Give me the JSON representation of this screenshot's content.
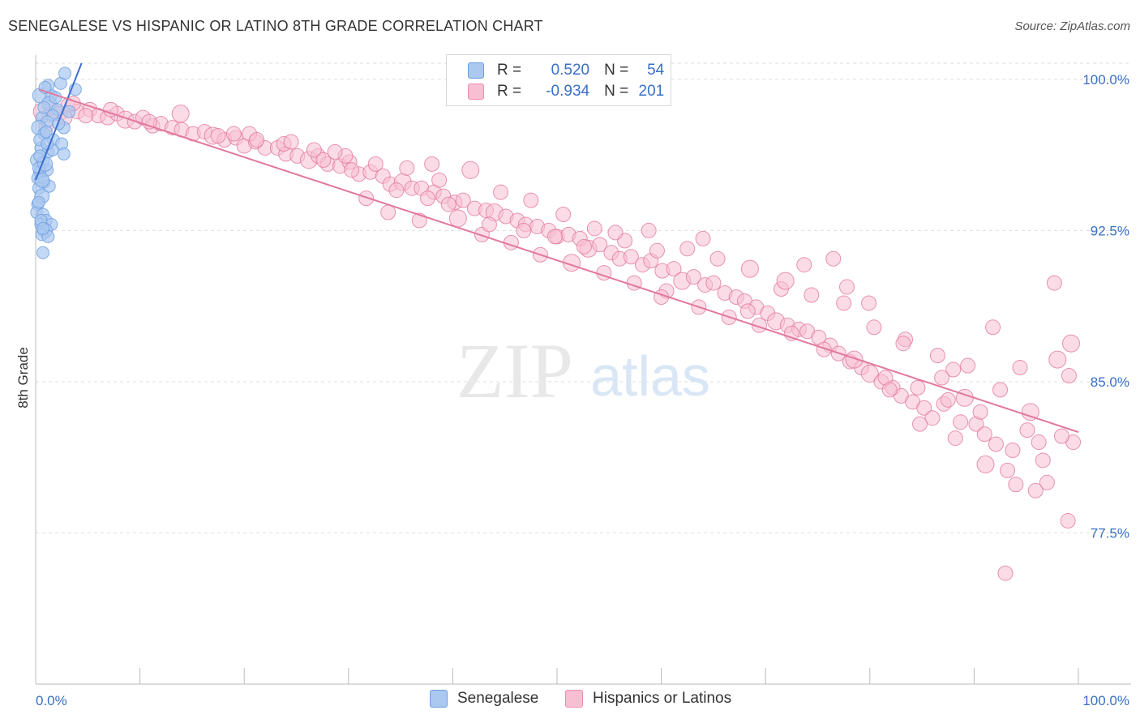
{
  "header": {
    "title": "SENEGALESE VS HISPANIC OR LATINO 8TH GRADE CORRELATION CHART",
    "source": "Source: ZipAtlas.com"
  },
  "watermark": {
    "zip": "ZIP",
    "atlas": "atlas"
  },
  "legend": {
    "rows": [
      {
        "r_label": "R =",
        "r_value": "0.520",
        "n_label": "N =",
        "n_value": "54",
        "color": "#aac8f0",
        "border": "#6c9ee0"
      },
      {
        "r_label": "R =",
        "r_value": "-0.934",
        "n_label": "N =",
        "n_value": "201",
        "color": "#f7bfd1",
        "border": "#ec8db0"
      }
    ]
  },
  "bottom_legend": {
    "items": [
      {
        "label": "Senegalese",
        "color": "#aac8f0",
        "border": "#6c9ee0"
      },
      {
        "label": "Hispanics or Latinos",
        "color": "#f7bfd1",
        "border": "#ec8db0"
      }
    ]
  },
  "chart_data": {
    "type": "scatter",
    "title": "SENEGALESE VS HISPANIC OR LATINO 8TH GRADE CORRELATION CHART",
    "xlabel": "",
    "ylabel": "8th Grade",
    "xlim": [
      0,
      100
    ],
    "ylim": [
      70.0,
      100.8
    ],
    "x_tick_labels": [
      "0.0%",
      "100.0%"
    ],
    "y_ticks": [
      77.5,
      85.0,
      92.5,
      100.0
    ],
    "y_tick_labels": [
      "77.5%",
      "85.0%",
      "92.5%",
      "100.0%"
    ],
    "grid": true,
    "legend_position": "top-center",
    "series": [
      {
        "name": "Senegalese",
        "color": "#6c9ee0",
        "fill": "#aac8f0",
        "trend": {
          "x": [
            0,
            4.4
          ],
          "y": [
            95.0,
            100.8
          ]
        },
        "points": [
          [
            0.4,
            99.2
          ],
          [
            1.5,
            99.2
          ],
          [
            1.2,
            99.7
          ],
          [
            2.4,
            99.8
          ],
          [
            2.8,
            100.3
          ],
          [
            3.8,
            99.5
          ],
          [
            0.9,
            99.6
          ],
          [
            1.3,
            98.8
          ],
          [
            2.1,
            98.5
          ],
          [
            3.2,
            98.4
          ],
          [
            1.6,
            98.2
          ],
          [
            0.6,
            98.1
          ],
          [
            1.1,
            97.9
          ],
          [
            2.7,
            97.6
          ],
          [
            0.3,
            97.6
          ],
          [
            0.8,
            97.3
          ],
          [
            1.7,
            97.0
          ],
          [
            2.5,
            96.8
          ],
          [
            0.5,
            96.6
          ],
          [
            1.2,
            96.4
          ],
          [
            2.7,
            96.3
          ],
          [
            0.2,
            96.0
          ],
          [
            0.7,
            95.9
          ],
          [
            1.1,
            95.5
          ],
          [
            0.4,
            95.4
          ],
          [
            0.2,
            95.1
          ],
          [
            0.8,
            94.9
          ],
          [
            0.3,
            94.6
          ],
          [
            0.6,
            94.2
          ],
          [
            0.2,
            93.8
          ],
          [
            0.1,
            93.4
          ],
          [
            0.7,
            93.3
          ],
          [
            1.0,
            93.0
          ],
          [
            1.5,
            92.8
          ],
          [
            0.5,
            92.8
          ],
          [
            0.9,
            92.5
          ],
          [
            0.6,
            92.3
          ],
          [
            1.2,
            92.2
          ],
          [
            0.7,
            91.4
          ],
          [
            0.3,
            95.6
          ],
          [
            0.4,
            97.0
          ],
          [
            1.6,
            96.5
          ],
          [
            0.9,
            95.8
          ],
          [
            1.3,
            94.7
          ],
          [
            0.5,
            93.0
          ],
          [
            0.8,
            98.6
          ],
          [
            1.9,
            99.1
          ],
          [
            2.2,
            97.8
          ],
          [
            0.4,
            96.2
          ],
          [
            0.6,
            95.0
          ],
          [
            1.0,
            97.4
          ],
          [
            0.3,
            93.9
          ],
          [
            1.1,
            96.8
          ],
          [
            0.7,
            92.6
          ]
        ]
      },
      {
        "name": "Hispanics or Latinos",
        "color": "#e2789f",
        "fill": "#f7bfd1",
        "trend": {
          "x": [
            0.3,
            100
          ],
          "y": [
            99.5,
            82.5
          ]
        },
        "points": [
          [
            0.6,
            98.4
          ],
          [
            1.5,
            98.6
          ],
          [
            2.3,
            98.3
          ],
          [
            3.1,
            98.7
          ],
          [
            4.0,
            98.4
          ],
          [
            5.2,
            98.5
          ],
          [
            6.0,
            98.2
          ],
          [
            6.9,
            98.1
          ],
          [
            7.8,
            98.3
          ],
          [
            8.6,
            98.0
          ],
          [
            9.5,
            97.9
          ],
          [
            10.3,
            98.1
          ],
          [
            11.2,
            97.7
          ],
          [
            12.0,
            97.8
          ],
          [
            13.1,
            97.6
          ],
          [
            14.0,
            97.5
          ],
          [
            15.1,
            97.3
          ],
          [
            16.2,
            97.4
          ],
          [
            17.0,
            97.2
          ],
          [
            18.1,
            97.0
          ],
          [
            19.2,
            97.1
          ],
          [
            20.0,
            96.7
          ],
          [
            21.1,
            96.9
          ],
          [
            22.0,
            96.6
          ],
          [
            23.2,
            96.6
          ],
          [
            24.0,
            96.3
          ],
          [
            25.1,
            96.2
          ],
          [
            26.2,
            96.0
          ],
          [
            27.1,
            96.2
          ],
          [
            28.0,
            95.8
          ],
          [
            29.2,
            95.7
          ],
          [
            30.1,
            95.9
          ],
          [
            31.0,
            95.3
          ],
          [
            32.1,
            95.4
          ],
          [
            33.3,
            95.2
          ],
          [
            34.0,
            94.8
          ],
          [
            35.2,
            94.9
          ],
          [
            36.1,
            94.6
          ],
          [
            37.0,
            94.6
          ],
          [
            38.2,
            94.4
          ],
          [
            39.1,
            94.2
          ],
          [
            40.2,
            93.9
          ],
          [
            41.0,
            94.0
          ],
          [
            42.1,
            93.6
          ],
          [
            43.2,
            93.5
          ],
          [
            44.0,
            93.4
          ],
          [
            45.1,
            93.2
          ],
          [
            46.2,
            93.0
          ],
          [
            47.0,
            92.8
          ],
          [
            48.1,
            92.7
          ],
          [
            49.2,
            92.5
          ],
          [
            50.0,
            92.2
          ],
          [
            51.1,
            92.3
          ],
          [
            52.2,
            92.1
          ],
          [
            53.0,
            91.6
          ],
          [
            54.1,
            91.8
          ],
          [
            55.2,
            91.4
          ],
          [
            56.0,
            91.1
          ],
          [
            57.1,
            91.2
          ],
          [
            58.2,
            90.8
          ],
          [
            59.0,
            91.0
          ],
          [
            60.1,
            90.5
          ],
          [
            61.2,
            90.6
          ],
          [
            62.0,
            90.0
          ],
          [
            63.1,
            90.2
          ],
          [
            64.2,
            89.8
          ],
          [
            65.0,
            89.9
          ],
          [
            66.1,
            89.4
          ],
          [
            67.2,
            89.2
          ],
          [
            68.0,
            89.0
          ],
          [
            69.1,
            88.7
          ],
          [
            70.2,
            88.4
          ],
          [
            71.0,
            88.0
          ],
          [
            72.1,
            87.8
          ],
          [
            73.2,
            87.6
          ],
          [
            74.0,
            87.5
          ],
          [
            75.1,
            87.2
          ],
          [
            76.2,
            86.8
          ],
          [
            77.0,
            86.4
          ],
          [
            78.1,
            86.0
          ],
          [
            79.2,
            85.7
          ],
          [
            80.0,
            85.4
          ],
          [
            81.1,
            85.0
          ],
          [
            82.2,
            84.7
          ],
          [
            83.0,
            84.3
          ],
          [
            84.1,
            84.0
          ],
          [
            85.2,
            83.7
          ],
          [
            86.0,
            83.2
          ],
          [
            87.1,
            83.9
          ],
          [
            88.0,
            85.6
          ],
          [
            89.1,
            84.2
          ],
          [
            90.2,
            82.9
          ],
          [
            91.0,
            82.4
          ],
          [
            92.1,
            81.9
          ],
          [
            93.2,
            80.6
          ],
          [
            94.0,
            79.9
          ],
          [
            95.1,
            82.6
          ],
          [
            96.2,
            82.0
          ],
          [
            97.0,
            80.0
          ],
          [
            98.0,
            86.1
          ],
          [
            99.1,
            85.3
          ],
          [
            99.5,
            82.0
          ],
          [
            1.0,
            97.7
          ],
          [
            2.8,
            98.1
          ],
          [
            3.6,
            98.8
          ],
          [
            4.8,
            98.2
          ],
          [
            7.2,
            98.5
          ],
          [
            10.9,
            97.9
          ],
          [
            13.9,
            98.3
          ],
          [
            17.5,
            97.2
          ],
          [
            20.5,
            97.3
          ],
          [
            23.8,
            96.8
          ],
          [
            26.7,
            96.5
          ],
          [
            29.7,
            96.2
          ],
          [
            32.6,
            95.8
          ],
          [
            35.6,
            95.6
          ],
          [
            38.7,
            95.0
          ],
          [
            41.7,
            95.5
          ],
          [
            44.6,
            94.4
          ],
          [
            47.5,
            94.0
          ],
          [
            50.6,
            93.3
          ],
          [
            53.6,
            92.6
          ],
          [
            56.5,
            92.0
          ],
          [
            59.6,
            91.5
          ],
          [
            62.5,
            91.6
          ],
          [
            65.4,
            91.1
          ],
          [
            68.5,
            90.6
          ],
          [
            71.5,
            89.6
          ],
          [
            74.4,
            89.3
          ],
          [
            77.5,
            88.9
          ],
          [
            80.4,
            87.7
          ],
          [
            83.4,
            87.1
          ],
          [
            86.5,
            86.3
          ],
          [
            89.4,
            85.8
          ],
          [
            92.5,
            84.6
          ],
          [
            95.4,
            83.5
          ],
          [
            98.4,
            82.3
          ],
          [
            31.7,
            94.1
          ],
          [
            33.8,
            93.4
          ],
          [
            36.8,
            93.0
          ],
          [
            39.6,
            93.8
          ],
          [
            42.8,
            92.3
          ],
          [
            45.6,
            91.9
          ],
          [
            48.4,
            91.3
          ],
          [
            51.4,
            90.9
          ],
          [
            54.5,
            90.4
          ],
          [
            57.4,
            89.9
          ],
          [
            60.5,
            89.5
          ],
          [
            63.6,
            88.7
          ],
          [
            66.5,
            88.2
          ],
          [
            69.4,
            87.8
          ],
          [
            72.5,
            87.4
          ],
          [
            75.6,
            86.6
          ],
          [
            78.5,
            86.1
          ],
          [
            81.5,
            85.2
          ],
          [
            84.6,
            84.7
          ],
          [
            87.5,
            84.1
          ],
          [
            90.6,
            83.5
          ],
          [
            93.7,
            81.6
          ],
          [
            96.6,
            81.1
          ],
          [
            60.0,
            89.2
          ],
          [
            68.3,
            88.5
          ],
          [
            71.9,
            90.0
          ],
          [
            76.5,
            91.1
          ],
          [
            79.9,
            88.9
          ],
          [
            83.2,
            86.9
          ],
          [
            86.9,
            85.2
          ],
          [
            88.7,
            83.0
          ],
          [
            91.8,
            87.7
          ],
          [
            94.4,
            85.7
          ],
          [
            97.7,
            89.9
          ],
          [
            99.3,
            86.9
          ],
          [
            58.8,
            92.5
          ],
          [
            64.0,
            92.1
          ],
          [
            55.6,
            92.4
          ],
          [
            73.7,
            90.8
          ],
          [
            77.8,
            89.7
          ],
          [
            81.9,
            84.6
          ],
          [
            84.8,
            82.9
          ],
          [
            88.2,
            82.2
          ],
          [
            91.1,
            80.9
          ],
          [
            95.9,
            79.6
          ],
          [
            99.0,
            78.1
          ],
          [
            21.2,
            97.0
          ],
          [
            24.5,
            96.9
          ],
          [
            27.6,
            96.0
          ],
          [
            30.3,
            95.5
          ],
          [
            34.6,
            94.5
          ],
          [
            37.6,
            94.1
          ],
          [
            40.5,
            93.1
          ],
          [
            43.5,
            92.8
          ],
          [
            46.8,
            92.5
          ],
          [
            49.8,
            92.2
          ],
          [
            52.6,
            91.7
          ],
          [
            93.0,
            75.5
          ],
          [
            19.0,
            97.3
          ],
          [
            28.7,
            96.4
          ],
          [
            38.0,
            95.8
          ]
        ]
      }
    ]
  }
}
